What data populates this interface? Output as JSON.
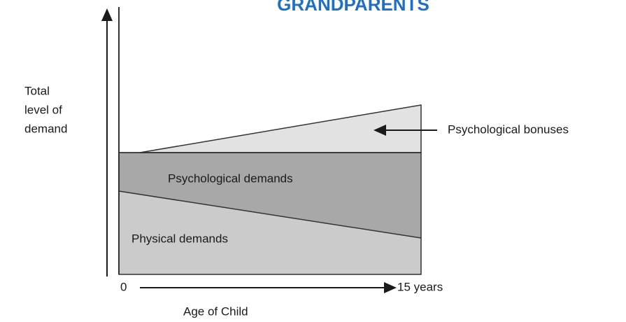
{
  "header": {
    "title": "GRANDPARENTS"
  },
  "y_axis": {
    "label_lines": [
      "Total",
      "level of",
      "demand"
    ]
  },
  "x_axis": {
    "start": "0",
    "end": "15 years",
    "label": "Age of Child"
  },
  "regions": {
    "physical": "Physical demands",
    "psychological": "Psychological demands",
    "bonuses": "Psychological bonuses"
  }
}
